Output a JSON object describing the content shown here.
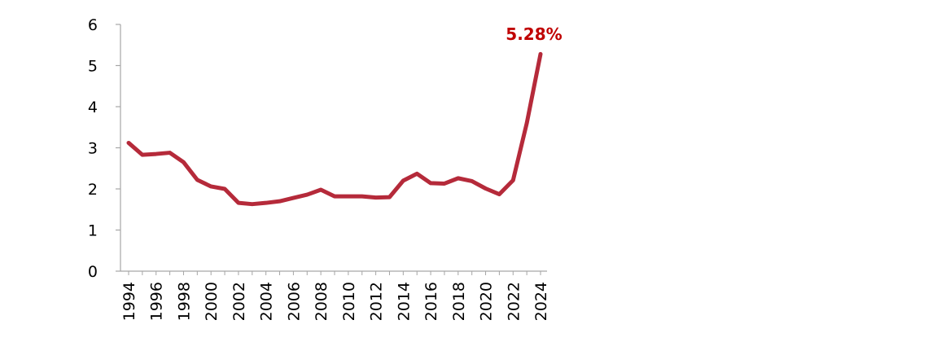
{
  "chart_data": {
    "type": "line",
    "title": "",
    "xlabel": "",
    "ylabel": "",
    "x": [
      1994,
      1995,
      1996,
      1997,
      1998,
      1999,
      2000,
      2001,
      2002,
      2003,
      2004,
      2005,
      2006,
      2007,
      2008,
      2009,
      2010,
      2011,
      2012,
      2013,
      2014,
      2015,
      2016,
      2017,
      2018,
      2019,
      2020,
      2021,
      2022,
      2023,
      2024
    ],
    "series": [
      {
        "values": [
          3.12,
          2.83,
          2.85,
          2.88,
          2.65,
          2.22,
          2.06,
          2.0,
          1.66,
          1.63,
          1.66,
          1.7,
          1.78,
          1.86,
          1.98,
          1.82,
          1.82,
          1.82,
          1.79,
          1.8,
          2.2,
          2.37,
          2.14,
          2.13,
          2.26,
          2.19,
          2.01,
          1.87,
          2.21,
          3.6,
          5.28
        ]
      }
    ],
    "ylim": [
      0,
      6
    ],
    "yticks": [
      "0",
      "1",
      "2",
      "3",
      "4",
      "5",
      "6"
    ],
    "xticks": [
      "1994",
      "1996",
      "1998",
      "2000",
      "2002",
      "2004",
      "2006",
      "2008",
      "2010",
      "2012",
      "2014",
      "2016",
      "2018",
      "2020",
      "2022",
      "2024"
    ],
    "annotation": {
      "text": "5.28%",
      "x": 2024,
      "y": 5.28
    },
    "grid": false,
    "legend": "none",
    "colors": {
      "line": "#B52A3A",
      "annotation": "#C00000",
      "axis": "#A6A6A6",
      "text": "#000000"
    }
  }
}
